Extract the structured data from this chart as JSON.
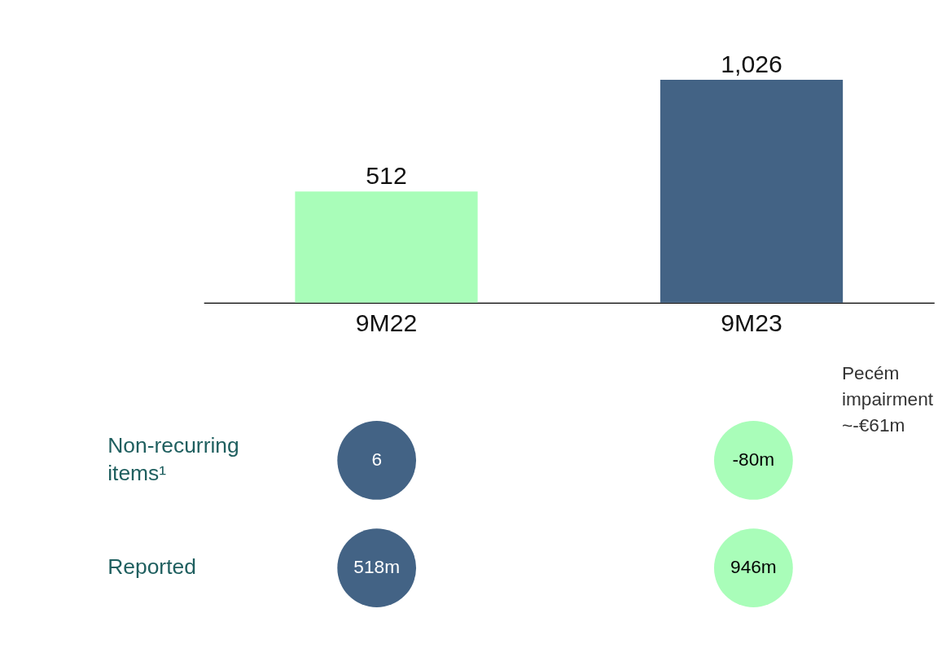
{
  "chart_data": {
    "type": "bar",
    "categories": [
      "9M22",
      "9M23"
    ],
    "values": [
      512,
      1026
    ],
    "colors": [
      "#a9fdb9",
      "#436385"
    ],
    "ylim": [
      0,
      1026
    ],
    "value_labels": [
      "512",
      "1,026"
    ],
    "grid": false,
    "tick_labels": "x",
    "annotations": [
      "Pecém impairment ~-€61m",
      "Non-recurring items¹",
      "6",
      "-80m",
      "Reported",
      "518m",
      "946m"
    ]
  }
}
